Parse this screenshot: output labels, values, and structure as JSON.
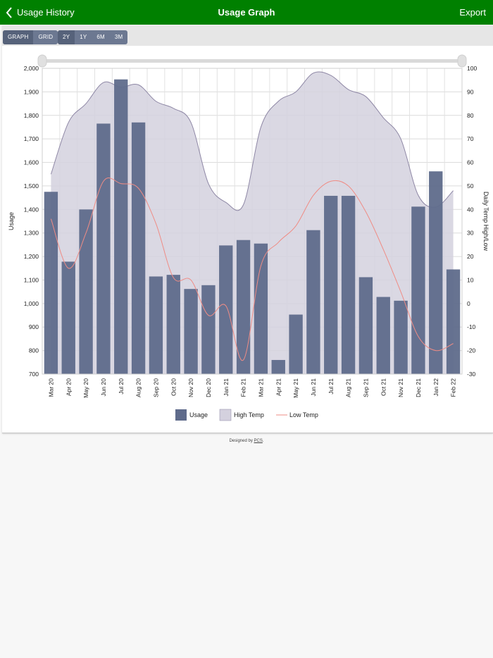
{
  "header": {
    "back_label": "Usage History",
    "title": "Usage Graph",
    "export_label": "Export"
  },
  "toolbar": {
    "view_buttons": [
      {
        "label": "GRAPH",
        "active": true
      },
      {
        "label": "GRID",
        "active": false
      }
    ],
    "range_buttons": [
      {
        "label": "2Y",
        "active": true
      },
      {
        "label": "1Y",
        "active": false
      },
      {
        "label": "6M",
        "active": false
      },
      {
        "label": "3M",
        "active": false
      }
    ]
  },
  "footer": {
    "prefix": "Designed by ",
    "link": "PCS",
    "suffix": "."
  },
  "chart_data": {
    "type": "bar",
    "categories": [
      "Mar 20",
      "Apr 20",
      "May 20",
      "Jun 20",
      "Jul 20",
      "Aug 20",
      "Sep 20",
      "Oct 20",
      "Nov 20",
      "Dec 20",
      "Jan 21",
      "Feb 21",
      "Mar 21",
      "Apr 21",
      "May 21",
      "Jun 21",
      "Jul 21",
      "Aug 21",
      "Sep 21",
      "Oct 21",
      "Nov 21",
      "Dec 21",
      "Jan 22",
      "Feb 22"
    ],
    "ylabel": "Usage",
    "y2label": "Daily Temp High/Low",
    "ylim": [
      700,
      2000
    ],
    "y2lim": [
      -30,
      100
    ],
    "yticks": [
      700,
      800,
      900,
      1000,
      1100,
      1200,
      1300,
      1400,
      1500,
      1600,
      1700,
      1800,
      1900,
      2000
    ],
    "y2ticks": [
      -30,
      -20,
      -10,
      0,
      10,
      20,
      30,
      40,
      50,
      60,
      70,
      80,
      90,
      100
    ],
    "ytick_labels": [
      "700",
      "800",
      "900",
      "1,000",
      "1,100",
      "1,200",
      "1,300",
      "1,400",
      "1,500",
      "1,600",
      "1,700",
      "1,800",
      "1,900",
      "2,000"
    ],
    "y2tick_labels": [
      "-30",
      "-20",
      "-10",
      "0",
      "10",
      "20",
      "30",
      "40",
      "50",
      "60",
      "70",
      "80",
      "90",
      "100"
    ],
    "grid": true,
    "legend_position": "bottom",
    "legend": [
      "Usage",
      "High Temp",
      "Low Temp"
    ],
    "colors": {
      "usage": "#5f6b8b",
      "high_fill": "#d4d1de",
      "high_line": "#8e87a5",
      "low_line": "#ef8c85"
    },
    "series": [
      {
        "name": "Usage",
        "type": "bar",
        "axis": "left",
        "values": [
          1475,
          1178,
          1400,
          1765,
          1953,
          1770,
          1115,
          1122,
          1062,
          1078,
          1247,
          1270,
          1255,
          760,
          953,
          1312,
          1458,
          1458,
          1112,
          1028,
          1012,
          1412,
          1562,
          1145
        ]
      },
      {
        "name": "High Temp",
        "type": "area",
        "axis": "right",
        "values": [
          55,
          77,
          85,
          94,
          92,
          93,
          86,
          83,
          77,
          51,
          43,
          42,
          75,
          86,
          90,
          98,
          97,
          91,
          88,
          79,
          70,
          46,
          41,
          48
        ]
      },
      {
        "name": "Low Temp",
        "type": "line",
        "axis": "right",
        "values": [
          36,
          15,
          30,
          52,
          51,
          49,
          34,
          11,
          10,
          -5,
          -1,
          -24,
          16,
          26,
          33,
          46,
          52,
          50,
          39,
          23,
          5,
          -14,
          -20,
          -17
        ]
      }
    ]
  }
}
